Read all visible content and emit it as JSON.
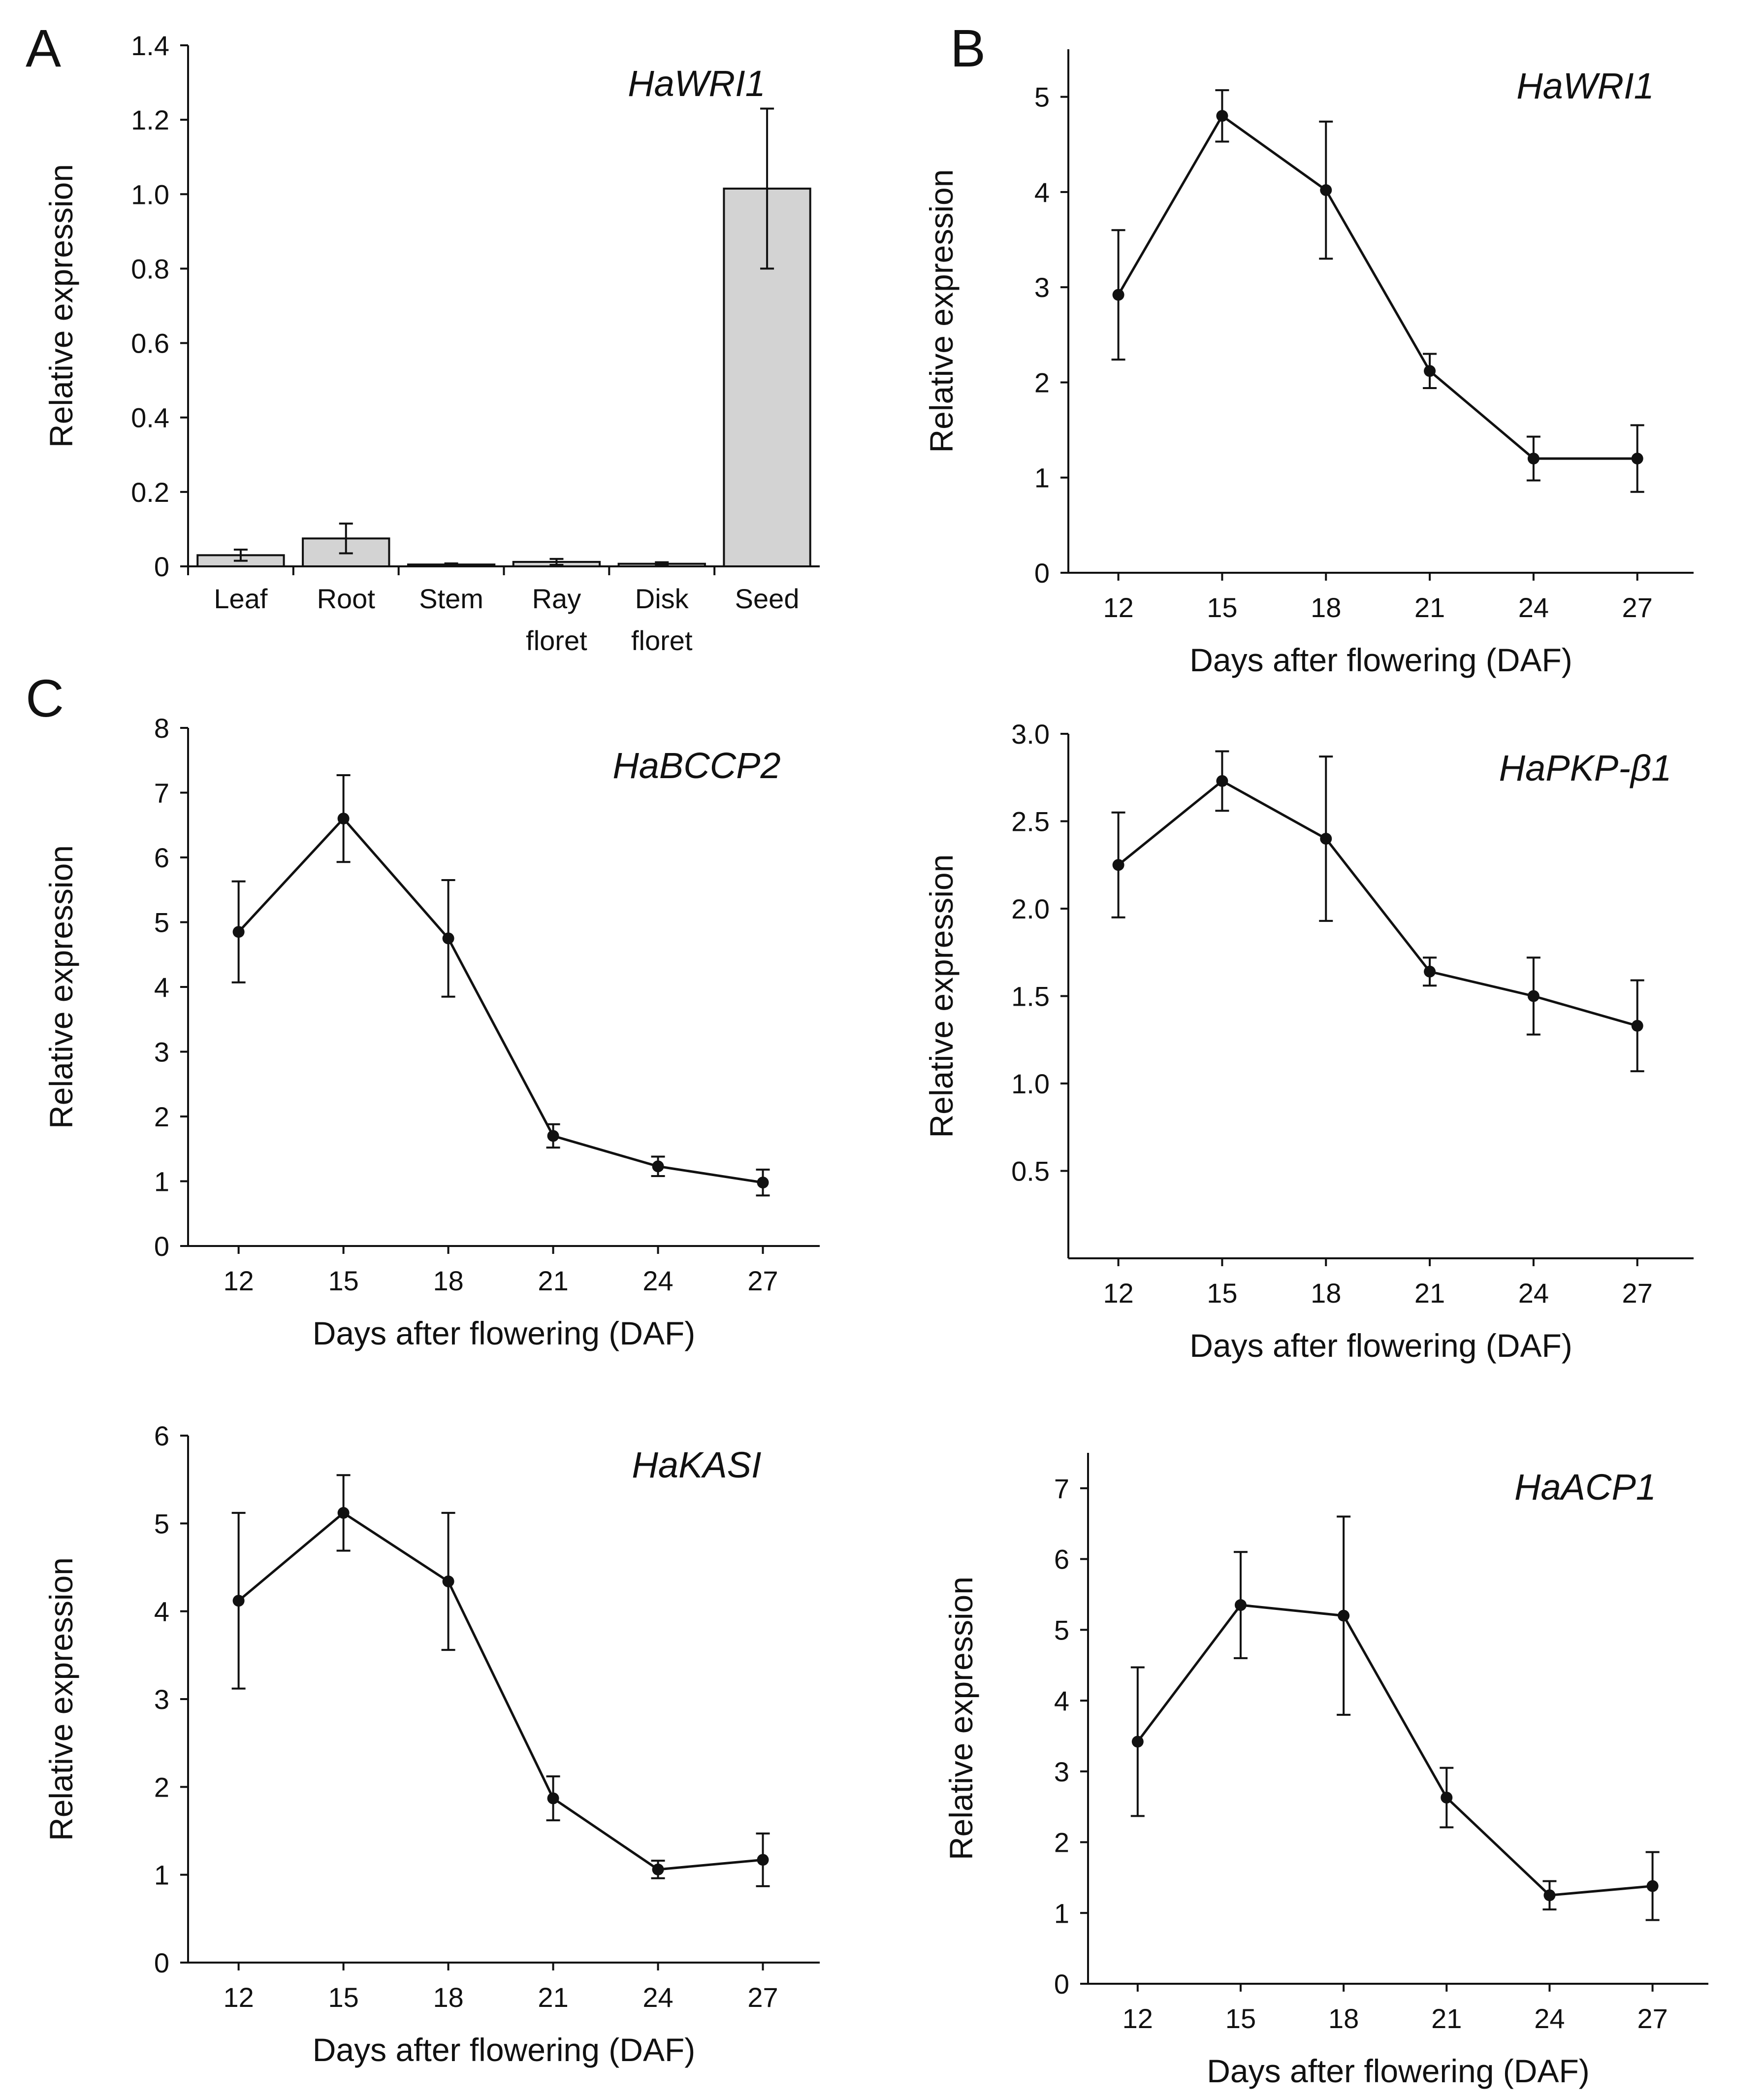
{
  "colors": {
    "ink": "#111111",
    "bar_fill": "#d3d3d3",
    "background": "#ffffff"
  },
  "panel_letters": [
    "A",
    "B",
    "C"
  ],
  "chart_data": [
    {
      "id": "A",
      "type": "bar",
      "title": "HaWRI1",
      "ylabel": "Relative expression",
      "xlabel": "",
      "categories": [
        [
          "Leaf"
        ],
        [
          "Root"
        ],
        [
          "Stem"
        ],
        [
          "Ray",
          "floret"
        ],
        [
          "Disk",
          "floret"
        ],
        [
          "Seed"
        ]
      ],
      "values": [
        0.03,
        0.075,
        0.005,
        0.012,
        0.007,
        1.015
      ],
      "errors": [
        0.015,
        0.04,
        0.003,
        0.008,
        0.004,
        0.215
      ],
      "ylim": [
        0,
        1.4
      ],
      "yticks": [
        "0",
        "0.2",
        "0.4",
        "0.6",
        "0.8",
        "1.0",
        "1.2",
        "1.4"
      ]
    },
    {
      "id": "B",
      "type": "line",
      "title": "HaWRI1",
      "ylabel": "Relative expression",
      "xlabel": "Days after flowering (DAF)",
      "x": [
        "12",
        "15",
        "18",
        "21",
        "24",
        "27"
      ],
      "values": [
        2.92,
        4.8,
        4.02,
        2.12,
        1.2,
        1.2
      ],
      "errors": [
        0.68,
        0.27,
        0.72,
        0.18,
        0.23,
        0.35
      ],
      "ylim": [
        0,
        5.5
      ],
      "yticks": [
        "0",
        "1",
        "2",
        "3",
        "4",
        "5"
      ]
    },
    {
      "id": "C1",
      "type": "line",
      "title": "HaBCCP2",
      "ylabel": "Relative expression",
      "xlabel": "Days after flowering (DAF)",
      "x": [
        "12",
        "15",
        "18",
        "21",
        "24",
        "27"
      ],
      "values": [
        4.85,
        6.6,
        4.75,
        1.7,
        1.23,
        0.98
      ],
      "errors": [
        0.78,
        0.67,
        0.9,
        0.18,
        0.15,
        0.2
      ],
      "ylim": [
        0,
        8
      ],
      "yticks": [
        "0",
        "1",
        "2",
        "3",
        "4",
        "5",
        "6",
        "7",
        "8"
      ]
    },
    {
      "id": "C2",
      "type": "line",
      "title": "HaPKP-β1",
      "ylabel": "Relative expression",
      "xlabel": "Days after flowering (DAF)",
      "x": [
        "12",
        "15",
        "18",
        "21",
        "24",
        "27"
      ],
      "values": [
        2.25,
        2.73,
        2.4,
        1.64,
        1.5,
        1.33
      ],
      "errors": [
        0.3,
        0.17,
        0.47,
        0.08,
        0.22,
        0.26
      ],
      "ylim": [
        0,
        3
      ],
      "yticks": [
        "0.5",
        "1.0",
        "1.5",
        "2.0",
        "2.5",
        "3.0"
      ]
    },
    {
      "id": "C3",
      "type": "line",
      "title": "HaKASI",
      "ylabel": "Relative expression",
      "xlabel": "Days after flowering (DAF)",
      "x": [
        "12",
        "15",
        "18",
        "21",
        "24",
        "27"
      ],
      "values": [
        4.12,
        5.12,
        4.34,
        1.87,
        1.06,
        1.17
      ],
      "errors": [
        1.0,
        0.43,
        0.78,
        0.25,
        0.1,
        0.3
      ],
      "ylim": [
        0,
        6
      ],
      "yticks": [
        "0",
        "1",
        "2",
        "3",
        "4",
        "5",
        "6"
      ]
    },
    {
      "id": "C4",
      "type": "line",
      "title": "HaACP1",
      "ylabel": "Relative expression",
      "xlabel": "Days after flowering (DAF)",
      "x": [
        "12",
        "15",
        "18",
        "21",
        "24",
        "27"
      ],
      "values": [
        3.42,
        5.35,
        5.2,
        2.63,
        1.25,
        1.38
      ],
      "errors": [
        1.05,
        0.75,
        1.4,
        0.42,
        0.2,
        0.48
      ],
      "ylim": [
        0,
        7.5
      ],
      "yticks": [
        "0",
        "1",
        "2",
        "3",
        "4",
        "5",
        "6",
        "7"
      ]
    }
  ]
}
